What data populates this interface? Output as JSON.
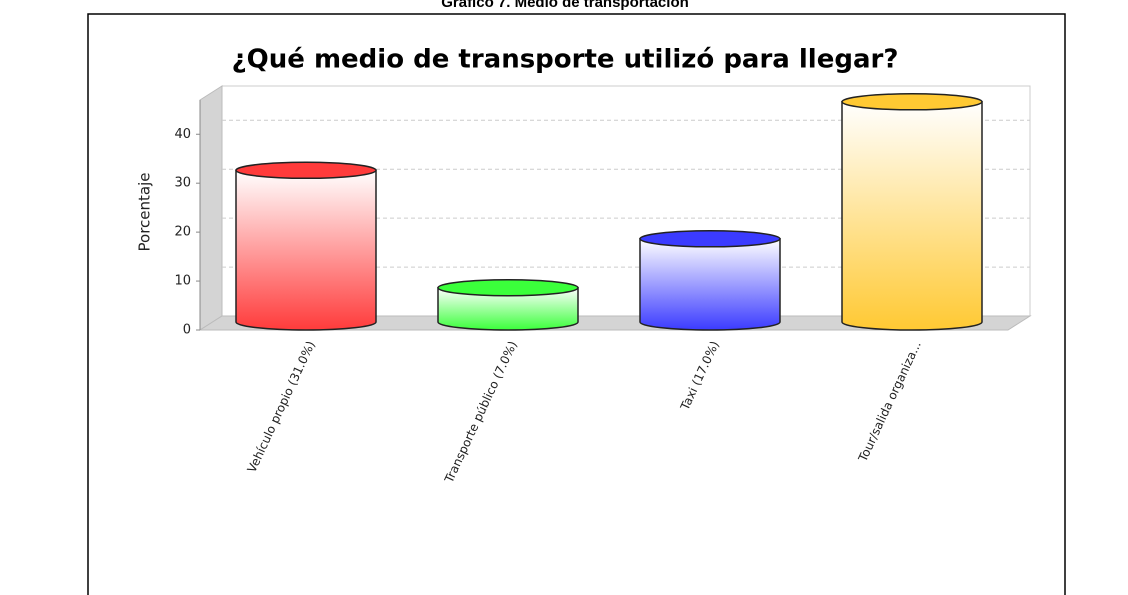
{
  "caption": "Gráfico 7. Medio de transportación",
  "chart_data": {
    "type": "bar3d",
    "title": "¿Qué medio de transporte utilizó para llegar?",
    "y_label": "Porcentaje",
    "categories": [
      "Vehículo propio (31.0%)",
      "Transporte público (7.0%)",
      "Taxi (17.0%)",
      "Tour/salida organiza..."
    ],
    "values": [
      31,
      7,
      17,
      45
    ],
    "colors": [
      "#ff3b3b",
      "#3bff3b",
      "#3b3bff",
      "#ffc933"
    ],
    "ylim": [
      0,
      47
    ],
    "yticks": [
      0,
      10,
      20,
      30,
      40
    ],
    "grid": true
  }
}
